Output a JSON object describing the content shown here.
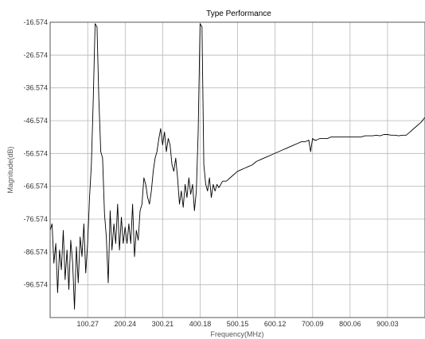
{
  "chart_data": {
    "type": "line",
    "title": "Type Performance",
    "xlabel": "Frequency(MHz)",
    "ylabel": "Magnitude(dB)",
    "xlim": [
      0,
      1000
    ],
    "ylim": [
      -106.574,
      -16.574
    ],
    "x_ticks": [
      "100.27",
      "200.24",
      "300.21",
      "400.18",
      "500.15",
      "600.12",
      "700.09",
      "800.06",
      "900.03"
    ],
    "x_tick_values": [
      100.27,
      200.24,
      300.21,
      400.18,
      500.15,
      600.12,
      700.09,
      800.06,
      900.03
    ],
    "y_ticks": [
      "-16.574",
      "-26.574",
      "-36.574",
      "-46.574",
      "-56.574",
      "-66.574",
      "-76.574",
      "-86.574",
      "-96.574"
    ],
    "y_tick_values": [
      -16.574,
      -26.574,
      -36.574,
      -46.574,
      -56.574,
      -66.574,
      -76.574,
      -86.574,
      -96.574
    ],
    "grid": true,
    "series": [
      {
        "x": [
          0,
          5,
          10,
          15,
          20,
          25,
          30,
          35,
          40,
          45,
          50,
          55,
          60,
          65,
          70,
          75,
          80,
          85,
          90,
          95,
          100,
          105,
          110,
          115,
          120,
          125,
          130,
          135,
          140,
          145,
          150,
          155,
          160,
          165,
          170,
          175,
          180,
          185,
          190,
          195,
          200,
          205,
          210,
          215,
          220,
          225,
          230,
          235,
          240,
          245,
          250,
          255,
          260,
          265,
          270,
          275,
          280,
          285,
          290,
          295,
          300,
          305,
          310,
          315,
          320,
          325,
          330,
          335,
          340,
          345,
          350,
          355,
          360,
          365,
          370,
          375,
          380,
          385,
          390,
          395,
          400,
          405,
          410,
          415,
          420,
          425,
          430,
          435,
          440,
          445,
          450,
          460,
          470,
          480,
          490,
          500,
          510,
          520,
          530,
          540,
          550,
          560,
          570,
          580,
          590,
          600,
          610,
          620,
          630,
          640,
          650,
          660,
          670,
          680,
          690,
          695,
          700,
          705,
          710,
          720,
          730,
          740,
          750,
          760,
          770,
          780,
          790,
          800,
          810,
          820,
          830,
          840,
          850,
          860,
          870,
          880,
          890,
          900,
          910,
          920,
          930,
          940,
          950,
          960,
          970,
          980,
          990,
          1000
        ],
        "y": [
          -80,
          -78,
          -90,
          -84,
          -99,
          -86,
          -92,
          -80,
          -95,
          -86,
          -98,
          -83,
          -90,
          -104,
          -85,
          -96,
          -82,
          -88,
          -78,
          -93,
          -84,
          -70,
          -60,
          -40,
          -17,
          -18,
          -40,
          -56,
          -58,
          -75,
          -82,
          -96,
          -74,
          -86,
          -78,
          -84,
          -72,
          -86,
          -76,
          -84,
          -79,
          -84,
          -78,
          -84,
          -72,
          -88,
          -80,
          -83,
          -74,
          -72,
          -64,
          -66,
          -70,
          -72,
          -68,
          -62,
          -58,
          -56,
          -52,
          -49,
          -54,
          -50,
          -56,
          -52,
          -54,
          -60,
          -62,
          -58,
          -64,
          -72,
          -68,
          -73,
          -66,
          -70,
          -64,
          -69,
          -66,
          -74,
          -68,
          -50,
          -17,
          -18,
          -60,
          -66,
          -68,
          -64,
          -70,
          -66,
          -68,
          -66,
          -67,
          -65,
          -65,
          -64,
          -63,
          -62,
          -61.5,
          -61,
          -60.5,
          -60,
          -59,
          -58.5,
          -58,
          -57.5,
          -57,
          -56.5,
          -56,
          -55.5,
          -55,
          -54.5,
          -54,
          -53.5,
          -53,
          -53,
          -52.5,
          -56,
          -52,
          -52.5,
          -52.5,
          -52,
          -52,
          -52,
          -51.5,
          -51.5,
          -51.5,
          -51.5,
          -51.5,
          -51.5,
          -51.5,
          -51.5,
          -51.5,
          -51.2,
          -51.2,
          -51.2,
          -51,
          -51.2,
          -50.8,
          -50.8,
          -51,
          -51,
          -51.2,
          -51,
          -51,
          -50,
          -49,
          -48,
          -47,
          -45.5
        ]
      }
    ]
  }
}
